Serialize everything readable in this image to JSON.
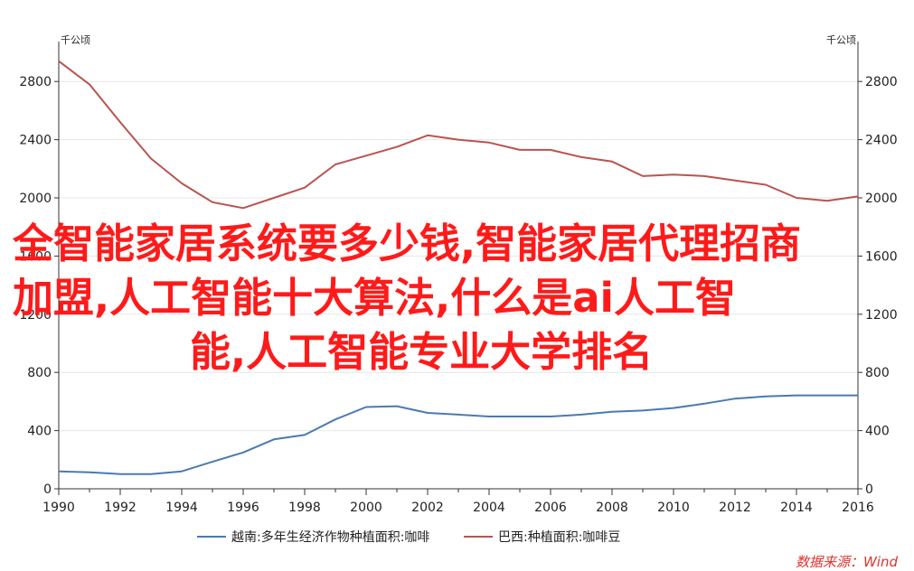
{
  "chart_data": {
    "type": "line",
    "left_unit": "千公顷",
    "right_unit": "千公顷",
    "x": [
      1990,
      1991,
      1992,
      1993,
      1994,
      1995,
      1996,
      1997,
      1998,
      1999,
      2000,
      2001,
      2002,
      2003,
      2004,
      2005,
      2006,
      2007,
      2008,
      2009,
      2010,
      2011,
      2012,
      2013,
      2014,
      2015,
      2016
    ],
    "x_ticks": [
      "1990",
      "1992",
      "1994",
      "1996",
      "1998",
      "2000",
      "2002",
      "2004",
      "2006",
      "2008",
      "2010",
      "2012",
      "2014",
      "2016"
    ],
    "y_ticks": [
      "0",
      "400",
      "800",
      "1200",
      "1600",
      "2000",
      "2400",
      "2800"
    ],
    "ylim": [
      0,
      3000
    ],
    "series": [
      {
        "name": "越南:多年生经济作物种植面积:咖啡",
        "color": "#4a7ab0",
        "axis": "left",
        "values": [
          119,
          113,
          101,
          101,
          120,
          186,
          250,
          340,
          370,
          477,
          562,
          568,
          522,
          510,
          497,
          497,
          497,
          510,
          530,
          538,
          555,
          585,
          620,
          635,
          642,
          642,
          642
        ]
      },
      {
        "name": "巴西:种植面积:咖啡豆",
        "color": "#b85450",
        "axis": "right",
        "values": [
          2940,
          2780,
          2520,
          2270,
          2100,
          1970,
          1930,
          2000,
          2070,
          2230,
          2290,
          2350,
          2430,
          2400,
          2380,
          2330,
          2330,
          2280,
          2250,
          2150,
          2160,
          2150,
          2120,
          2090,
          2000,
          1980,
          2010
        ]
      }
    ],
    "legend_position": "bottom-center",
    "grid": true
  },
  "overlay": {
    "line1": "全智能家居系统要多少钱,智能家居代理招商",
    "line2": "加盟,人工智能十大算法,什么是ai人工智",
    "line3": "能,人工智能专业大学排名"
  },
  "source": "数据来源：Wind"
}
